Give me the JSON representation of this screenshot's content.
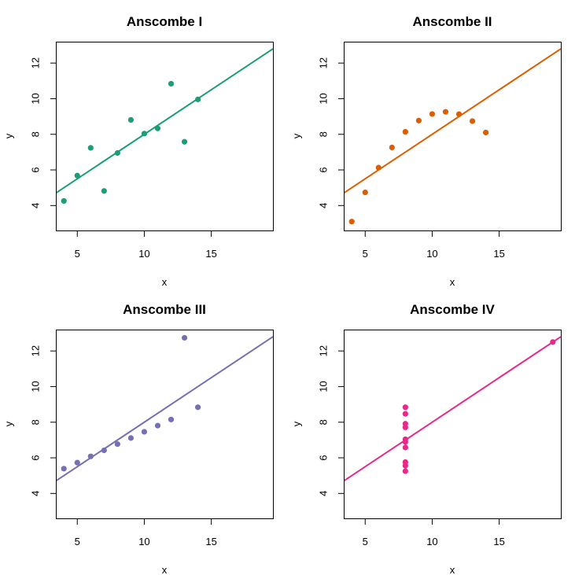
{
  "chart_data": [
    {
      "type": "scatter",
      "title": "Anscombe I",
      "xlabel": "x",
      "ylabel": "y",
      "xlim": [
        3.4,
        19.6
      ],
      "ylim": [
        2.6,
        13.2
      ],
      "xticks": [
        5,
        10,
        15
      ],
      "yticks": [
        4,
        6,
        8,
        10,
        12
      ],
      "grid": false,
      "color": "#1b9e77",
      "x": [
        10,
        8,
        13,
        9,
        11,
        14,
        6,
        4,
        12,
        7,
        5
      ],
      "y": [
        8.04,
        6.95,
        7.58,
        8.81,
        8.33,
        9.96,
        7.24,
        4.26,
        10.84,
        4.82,
        5.68
      ],
      "fit": {
        "intercept": 3.0,
        "slope": 0.5
      }
    },
    {
      "type": "scatter",
      "title": "Anscombe II",
      "xlabel": "x",
      "ylabel": "y",
      "xlim": [
        3.4,
        19.6
      ],
      "ylim": [
        2.6,
        13.2
      ],
      "xticks": [
        5,
        10,
        15
      ],
      "yticks": [
        4,
        6,
        8,
        10,
        12
      ],
      "grid": false,
      "color": "#d95f02",
      "x": [
        10,
        8,
        13,
        9,
        11,
        14,
        6,
        4,
        12,
        7,
        5
      ],
      "y": [
        9.14,
        8.14,
        8.74,
        8.77,
        9.26,
        8.1,
        6.13,
        3.1,
        9.13,
        7.26,
        4.74
      ],
      "fit": {
        "intercept": 3.0,
        "slope": 0.5
      }
    },
    {
      "type": "scatter",
      "title": "Anscombe III",
      "xlabel": "x",
      "ylabel": "y",
      "xlim": [
        3.4,
        19.6
      ],
      "ylim": [
        2.6,
        13.2
      ],
      "xticks": [
        5,
        10,
        15
      ],
      "yticks": [
        4,
        6,
        8,
        10,
        12
      ],
      "grid": false,
      "color": "#7570b3",
      "x": [
        10,
        8,
        13,
        9,
        11,
        14,
        6,
        4,
        12,
        7,
        5
      ],
      "y": [
        7.46,
        6.77,
        12.74,
        7.11,
        7.81,
        8.84,
        6.08,
        5.39,
        8.15,
        6.42,
        5.73
      ],
      "fit": {
        "intercept": 3.0,
        "slope": 0.5
      }
    },
    {
      "type": "scatter",
      "title": "Anscombe IV",
      "xlabel": "x",
      "ylabel": "y",
      "xlim": [
        3.4,
        19.6
      ],
      "ylim": [
        2.6,
        13.2
      ],
      "xticks": [
        5,
        10,
        15
      ],
      "yticks": [
        4,
        6,
        8,
        10,
        12
      ],
      "grid": false,
      "color": "#e7298a",
      "x": [
        8,
        8,
        8,
        8,
        8,
        8,
        8,
        19,
        8,
        8,
        8
      ],
      "y": [
        6.58,
        5.76,
        7.71,
        8.84,
        8.47,
        7.04,
        5.25,
        12.5,
        5.56,
        7.91,
        6.89
      ],
      "fit": {
        "intercept": 3.0,
        "slope": 0.5
      }
    }
  ]
}
